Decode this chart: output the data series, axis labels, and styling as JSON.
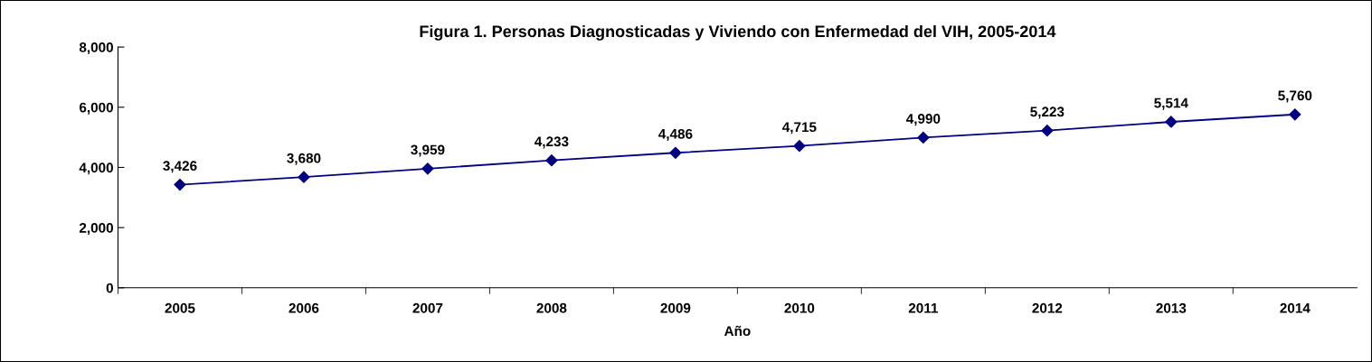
{
  "chart_data": {
    "type": "line",
    "title": "Figura 1. Personas Diagnosticadas y Viviendo con Enfermedad del VIH, 2005-2014",
    "xlabel": "Año",
    "categories": [
      "2005",
      "2006",
      "2007",
      "2008",
      "2009",
      "2010",
      "2011",
      "2012",
      "2013",
      "2014"
    ],
    "series": [
      {
        "color": "#000080",
        "values": [
          3426,
          3680,
          3959,
          4233,
          4486,
          4715,
          4990,
          5223,
          5514,
          5760
        ],
        "value_labels": [
          "3,426",
          "3,680",
          "3,959",
          "4,233",
          "4,486",
          "4,715",
          "4,990",
          "5,223",
          "5,514",
          "5,760"
        ]
      }
    ],
    "ylim": [
      0,
      8000
    ],
    "yticks": [
      {
        "value": 0,
        "label": "0"
      },
      {
        "value": 2000,
        "label": "2,000"
      },
      {
        "value": 4000,
        "label": "4,000"
      },
      {
        "value": 6000,
        "label": "6,000"
      },
      {
        "value": 8000,
        "label": "8,000"
      }
    ],
    "marker": "diamond",
    "line_style": "solid",
    "grid": false,
    "legend": false
  }
}
